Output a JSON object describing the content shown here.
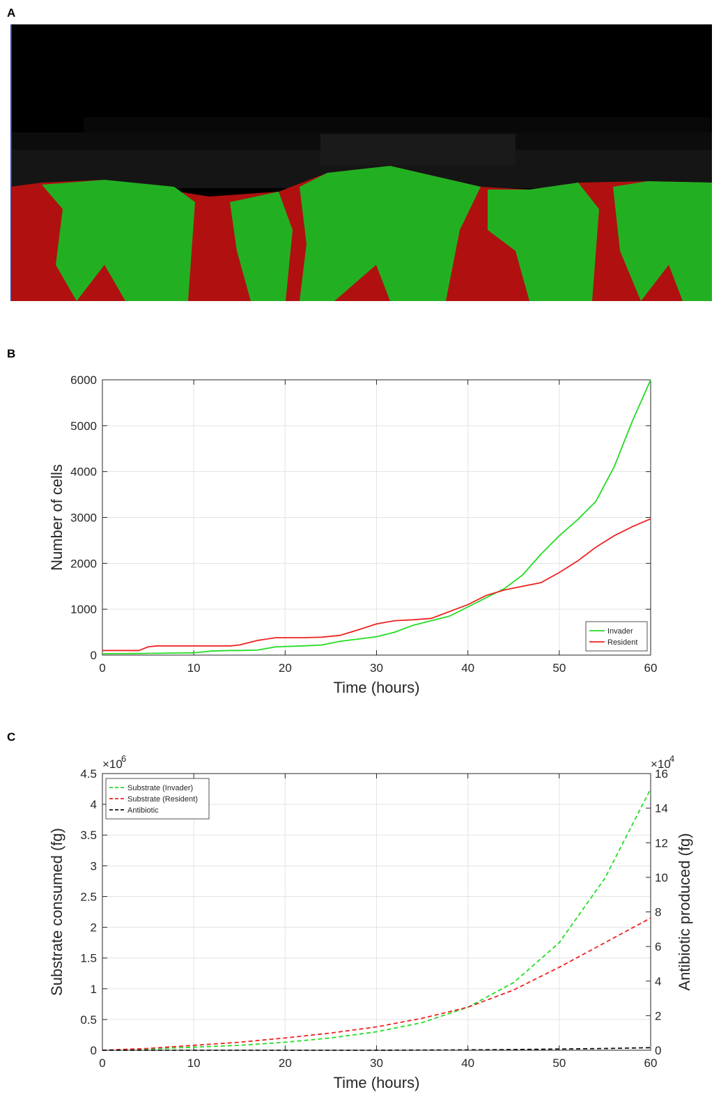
{
  "panel_labels": [
    "A",
    "B",
    "C"
  ],
  "chart_data": [
    {
      "type": "line",
      "xlabel": "Time (hours)",
      "ylabel": "Number of cells",
      "x": [
        0,
        4,
        5,
        6,
        10,
        12,
        14,
        15,
        17,
        19,
        22,
        24,
        26,
        28,
        30,
        32,
        34,
        36,
        38,
        40,
        42,
        44,
        46,
        48,
        50,
        52,
        54,
        56,
        58,
        60
      ],
      "series": [
        {
          "name": "Invader",
          "color": "#22dd22",
          "values": [
            30,
            35,
            38,
            40,
            50,
            90,
            100,
            100,
            110,
            180,
            200,
            220,
            300,
            350,
            400,
            500,
            650,
            750,
            850,
            1050,
            1250,
            1450,
            1750,
            2200,
            2600,
            2950,
            3350,
            4100,
            5100,
            6000
          ]
        },
        {
          "name": "Resident",
          "color": "#ee2222",
          "values": [
            100,
            100,
            180,
            200,
            200,
            200,
            200,
            220,
            320,
            380,
            380,
            390,
            430,
            550,
            680,
            750,
            770,
            800,
            950,
            1100,
            1300,
            1420,
            1500,
            1580,
            1800,
            2050,
            2350,
            2600,
            2800,
            2970
          ]
        }
      ],
      "xlim": [
        0,
        60
      ],
      "xticks": [
        0,
        10,
        20,
        30,
        40,
        50,
        60
      ],
      "ylim": [
        0,
        6000
      ],
      "yticks": [
        0,
        1000,
        2000,
        3000,
        4000,
        5000,
        6000
      ],
      "grid": true,
      "legend": "lower right"
    },
    {
      "type": "line",
      "xlabel": "Time (hours)",
      "ylabel": "Substrate consumed (fg)",
      "y2label": "Antibiotic produced (fg)",
      "y_multiplier": "×10",
      "y_exponent": "6",
      "y2_multiplier": "×10",
      "y2_exponent": "4",
      "x": [
        0,
        5,
        10,
        15,
        20,
        25,
        30,
        35,
        40,
        45,
        50,
        55,
        60
      ],
      "series": [
        {
          "name": "Substrate (Invader)",
          "color": "#22dd22",
          "line_style": "dashed",
          "values": [
            0,
            0.02,
            0.05,
            0.08,
            0.13,
            0.2,
            0.3,
            0.45,
            0.7,
            1.1,
            1.75,
            2.8,
            4.25
          ]
        },
        {
          "name": "Substrate (Resident)",
          "color": "#ee2222",
          "line_style": "dashed",
          "values": [
            0,
            0.03,
            0.08,
            0.13,
            0.2,
            0.28,
            0.38,
            0.52,
            0.7,
            0.98,
            1.35,
            1.75,
            2.15
          ]
        },
        {
          "name": "Antibiotic",
          "color": "#111111",
          "line_style": "dashed",
          "axis": "y2",
          "values": [
            0,
            0,
            0,
            0,
            0,
            0,
            0,
            0.01,
            0.02,
            0.04,
            0.07,
            0.1,
            0.15
          ]
        }
      ],
      "xlim": [
        0,
        60
      ],
      "xticks": [
        0,
        10,
        20,
        30,
        40,
        50,
        60
      ],
      "ylim": [
        0,
        4.5
      ],
      "yticks": [
        0,
        0.5,
        1,
        1.5,
        2,
        2.5,
        3,
        3.5,
        4,
        4.5
      ],
      "y2lim": [
        0,
        16
      ],
      "y2ticks": [
        0,
        2,
        4,
        6,
        8,
        10,
        12,
        14,
        16
      ],
      "grid": true,
      "legend": "upper left"
    }
  ]
}
